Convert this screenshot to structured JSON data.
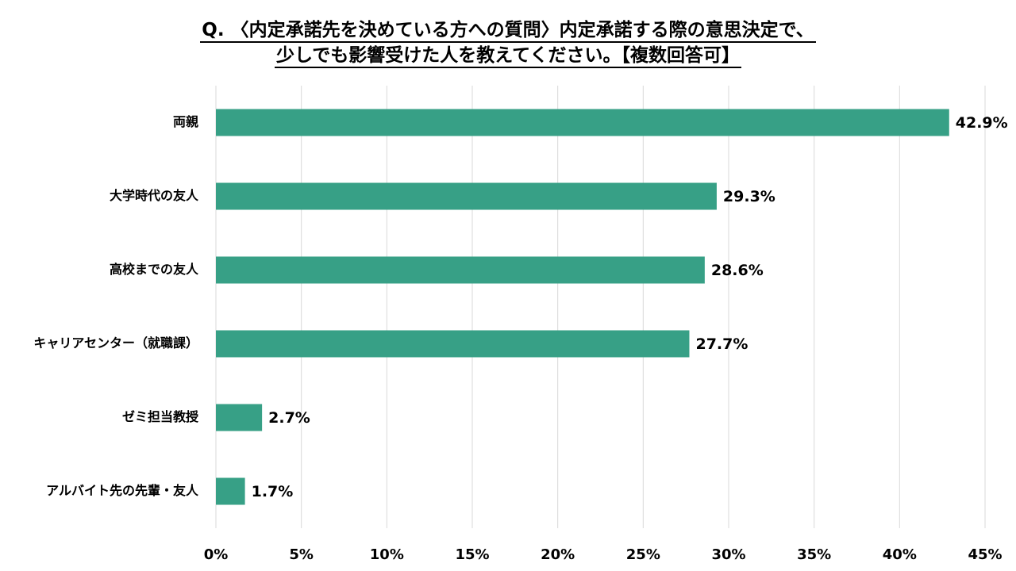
{
  "title_line1": "Q. 〈内定承諾先を決めている方への質問〉内定承諾する際の意思決定で、",
  "title_line2": "少しでも影響受けた人を教えてください。【複数回答可】",
  "colors": {
    "bar": "#37A086",
    "grid": "#D9D9D9",
    "text": "#000000"
  },
  "chart_data": {
    "type": "bar",
    "orientation": "horizontal",
    "categories": [
      "両親",
      "大学時代の友人",
      "高校までの友人",
      "キャリアセンター（就職課）",
      "ゼミ担当教授",
      "アルバイト先の先輩・友人"
    ],
    "values": [
      42.9,
      29.3,
      28.6,
      27.7,
      2.7,
      1.7
    ],
    "value_labels": [
      "42.9%",
      "29.3%",
      "28.6%",
      "27.7%",
      "2.7%",
      "1.7%"
    ],
    "xlim": [
      0,
      45
    ],
    "xticks": [
      0,
      5,
      10,
      15,
      20,
      25,
      30,
      35,
      40,
      45
    ],
    "xtick_labels": [
      "0%",
      "5%",
      "10%",
      "15%",
      "20%",
      "25%",
      "30%",
      "35%",
      "40%",
      "45%"
    ],
    "grid": true,
    "legend": "none"
  }
}
